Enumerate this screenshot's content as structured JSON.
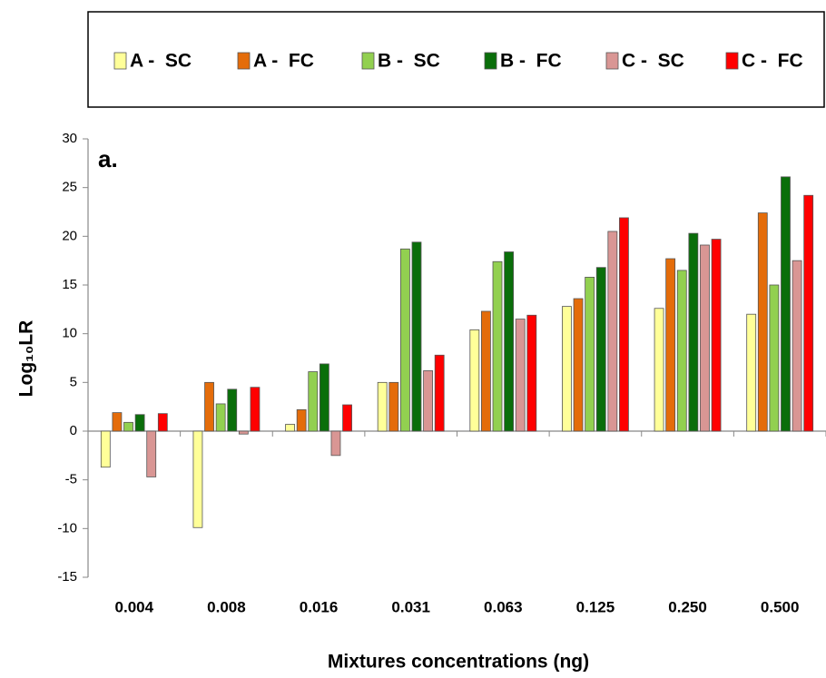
{
  "chart_data": {
    "type": "bar",
    "annotation": "a.",
    "y_label": "Log₁₀LR",
    "x_label": "Mixtures concentrations (ng)",
    "categories": [
      "0.004",
      "0.008",
      "0.016",
      "0.031",
      "0.063",
      "0.125",
      "0.250",
      "0.500"
    ],
    "series": [
      {
        "name": "A -  SC",
        "color": "#ffff99",
        "values": [
          -3.7,
          -9.9,
          0.7,
          5.0,
          10.4,
          12.8,
          12.6,
          12.0
        ]
      },
      {
        "name": "A -  FC",
        "color": "#e46c0a",
        "values": [
          1.9,
          5.0,
          2.2,
          5.0,
          12.3,
          13.6,
          17.7,
          22.4
        ]
      },
      {
        "name": "B -  SC",
        "color": "#92d050",
        "values": [
          0.9,
          2.8,
          6.1,
          18.7,
          17.4,
          15.8,
          16.5,
          15.0
        ]
      },
      {
        "name": "B -  FC",
        "color": "#0a6e0a",
        "values": [
          1.7,
          4.3,
          6.9,
          19.4,
          18.4,
          16.8,
          20.3,
          26.1
        ]
      },
      {
        "name": "C -  SC",
        "color": "#d99694",
        "values": [
          -4.7,
          -0.3,
          -2.5,
          6.2,
          11.5,
          20.5,
          19.1,
          17.5
        ]
      },
      {
        "name": "C -  FC",
        "color": "#ff0000",
        "values": [
          1.8,
          4.5,
          2.7,
          7.8,
          11.9,
          21.9,
          19.7,
          24.2
        ]
      }
    ],
    "ylim": [
      -15,
      30
    ],
    "yticks": [
      -15,
      -10,
      -5,
      0,
      5,
      10,
      15,
      20,
      25,
      30
    ],
    "legend": "top",
    "grid": false
  }
}
